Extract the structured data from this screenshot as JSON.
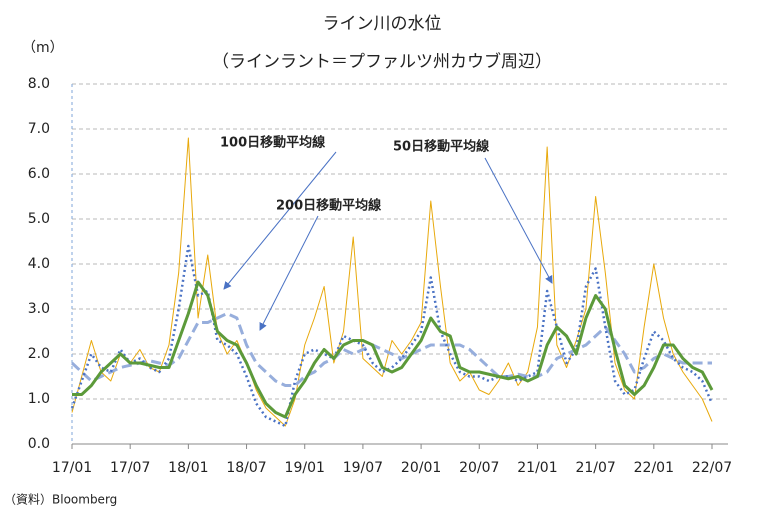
{
  "chart_data": {
    "type": "line",
    "title": "ライン川の水位",
    "subtitle": "（ラインラント＝プファルツ州カウブ周辺）",
    "y_label": "（m）",
    "source": "（資料）Bloomberg",
    "categories": [
      "17/01",
      null,
      null,
      null,
      null,
      null,
      "17/07",
      null,
      null,
      null,
      null,
      null,
      "18/01",
      null,
      null,
      null,
      null,
      null,
      "18/07",
      null,
      null,
      null,
      null,
      null,
      "19/01",
      null,
      null,
      null,
      null,
      null,
      "19/07",
      null,
      null,
      null,
      null,
      null,
      "20/01",
      null,
      null,
      null,
      null,
      null,
      "20/07",
      null,
      null,
      null,
      null,
      null,
      "21/01",
      null,
      null,
      null,
      null,
      null,
      "21/07",
      null,
      null,
      null,
      null,
      null,
      "22/01",
      null,
      null,
      null,
      null,
      null,
      "22/07"
    ],
    "ylim": [
      0,
      8
    ],
    "yticks": [
      {
        "value": 0,
        "label": "0.0"
      },
      {
        "value": 1,
        "label": "1.0"
      },
      {
        "value": 2,
        "label": "2.0"
      },
      {
        "value": 3,
        "label": "3.0"
      },
      {
        "value": 4,
        "label": "4.0"
      },
      {
        "value": 5,
        "label": "5.0"
      },
      {
        "value": 6,
        "label": "6.0"
      },
      {
        "value": 7,
        "label": "7.0"
      },
      {
        "value": 8,
        "label": "8.0"
      }
    ],
    "grid": true,
    "series": [
      {
        "color": "#e8a90c",
        "style": "solid",
        "width": 1,
        "values": [
          0.7,
          1.5,
          2.3,
          1.6,
          1.4,
          2.0,
          1.8,
          2.1,
          1.7,
          1.6,
          2.2,
          3.8,
          6.8,
          2.8,
          4.2,
          2.5,
          2.0,
          2.3,
          1.8,
          1.2,
          0.8,
          0.6,
          0.4,
          1.0,
          2.2,
          2.8,
          3.5,
          1.8,
          2.5,
          4.6,
          1.9,
          1.7,
          1.5,
          2.3,
          2.0,
          2.3,
          2.7,
          5.4,
          3.5,
          1.8,
          1.4,
          1.6,
          1.2,
          1.1,
          1.4,
          1.8,
          1.3,
          1.6,
          2.6,
          6.6,
          2.2,
          1.7,
          2.3,
          3.0,
          5.5,
          3.8,
          1.8,
          1.2,
          1.0,
          2.6,
          4.0,
          2.8,
          2.0,
          1.6,
          1.3,
          1.0,
          0.5
        ]
      },
      {
        "name": "200日移動平均線",
        "color": "#97aedc",
        "style": "dashed",
        "width": 3,
        "values": [
          1.8,
          1.6,
          1.4,
          1.5,
          1.6,
          1.7,
          1.75,
          1.8,
          1.85,
          1.8,
          1.75,
          1.9,
          2.3,
          2.7,
          2.7,
          2.8,
          2.9,
          2.8,
          2.2,
          1.8,
          1.6,
          1.4,
          1.3,
          1.3,
          1.5,
          1.6,
          1.8,
          1.9,
          2.1,
          2.0,
          2.1,
          2.2,
          2.1,
          2.0,
          1.9,
          2.0,
          2.1,
          2.2,
          2.2,
          2.2,
          2.2,
          2.1,
          1.9,
          1.7,
          1.5,
          1.5,
          1.55,
          1.5,
          1.5,
          1.6,
          1.9,
          2.0,
          2.1,
          2.2,
          2.4,
          2.6,
          2.3,
          2.0,
          1.6,
          1.7,
          1.9,
          2.0,
          1.9,
          1.8,
          1.8,
          1.8,
          1.8
        ]
      },
      {
        "name": "50日移動平均線",
        "color": "#4a72c4",
        "style": "dotted",
        "width": 2.5,
        "values": [
          0.8,
          1.4,
          2.0,
          1.7,
          1.6,
          2.1,
          1.8,
          1.9,
          1.7,
          1.6,
          1.9,
          3.0,
          4.4,
          3.3,
          3.4,
          2.3,
          2.2,
          2.0,
          1.5,
          0.9,
          0.6,
          0.5,
          0.4,
          1.4,
          2.0,
          2.1,
          2.0,
          1.9,
          2.4,
          2.3,
          2.2,
          1.8,
          1.6,
          1.7,
          1.9,
          2.2,
          2.5,
          3.7,
          2.5,
          2.0,
          1.6,
          1.5,
          1.5,
          1.4,
          1.5,
          1.5,
          1.4,
          1.5,
          1.6,
          3.4,
          2.6,
          1.8,
          2.1,
          3.5,
          3.9,
          2.6,
          1.4,
          1.1,
          1.2,
          1.9,
          2.5,
          2.3,
          1.9,
          1.7,
          1.6,
          1.4,
          0.9
        ]
      },
      {
        "name": "100日移動平均線",
        "color": "#5c9a3a",
        "style": "solid",
        "width": 3,
        "values": [
          1.1,
          1.1,
          1.3,
          1.6,
          1.8,
          2.0,
          1.8,
          1.8,
          1.75,
          1.7,
          1.7,
          2.3,
          2.9,
          3.6,
          3.3,
          2.5,
          2.3,
          2.2,
          1.8,
          1.3,
          0.9,
          0.7,
          0.6,
          1.1,
          1.4,
          1.8,
          2.1,
          1.9,
          2.2,
          2.3,
          2.3,
          2.2,
          1.7,
          1.6,
          1.7,
          2.0,
          2.3,
          2.8,
          2.5,
          2.4,
          1.7,
          1.6,
          1.6,
          1.55,
          1.5,
          1.45,
          1.5,
          1.4,
          1.5,
          2.2,
          2.6,
          2.4,
          2.0,
          2.8,
          3.3,
          3.0,
          2.1,
          1.3,
          1.1,
          1.3,
          1.7,
          2.2,
          2.2,
          1.9,
          1.7,
          1.6,
          1.2
        ]
      }
    ]
  }
}
